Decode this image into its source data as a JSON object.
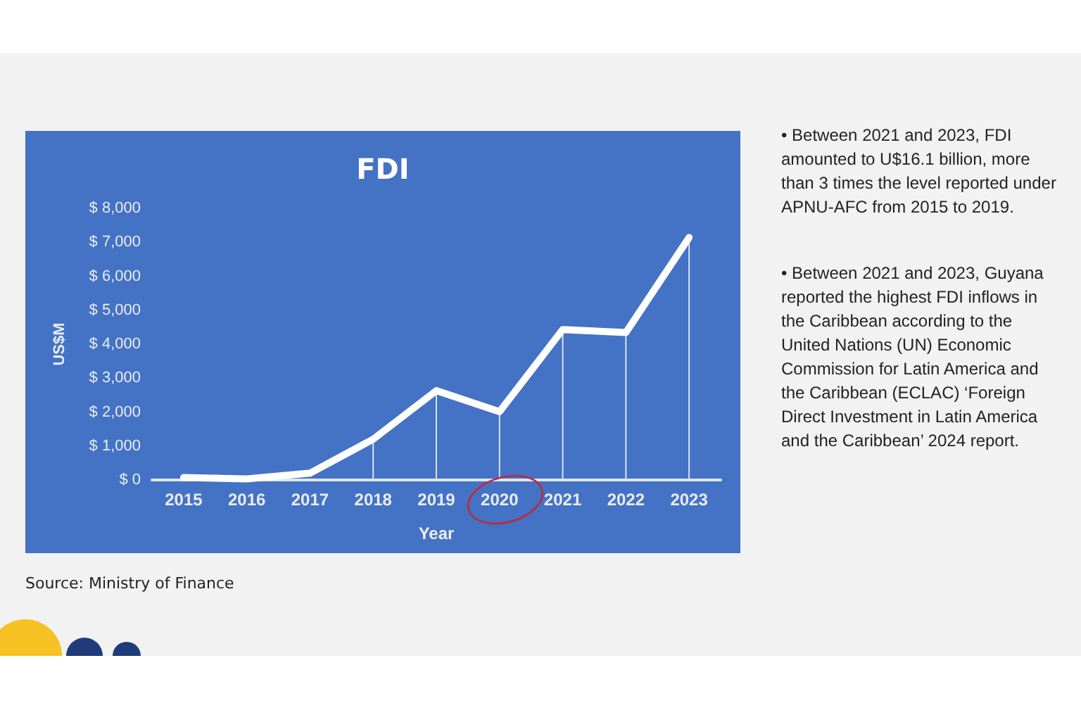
{
  "chart_data": {
    "type": "line",
    "title": "FDI",
    "xlabel": "Year",
    "ylabel": "US$M",
    "categories": [
      "2015",
      "2016",
      "2017",
      "2018",
      "2019",
      "2020",
      "2021",
      "2022",
      "2023"
    ],
    "series": [
      {
        "type": "bar",
        "color": "#d9e1f2",
        "values": [
          null,
          null,
          null,
          1200,
          2630,
          2010,
          4430,
          4340,
          7140
        ]
      },
      {
        "color": "#ffffff",
        "values": [
          70,
          30,
          200,
          1200,
          2630,
          2010,
          4430,
          4340,
          7140
        ]
      }
    ],
    "ylim": [
      0,
      8000
    ],
    "yticks": [
      {
        "value": 0,
        "label": "$ 0"
      },
      {
        "value": 1000,
        "label": "$ 1,000"
      },
      {
        "value": 2000,
        "label": "$ 2,000"
      },
      {
        "value": 3000,
        "label": "$ 3,000"
      },
      {
        "value": 4000,
        "label": "$ 4,000"
      },
      {
        "value": 5000,
        "label": "$ 5,000"
      },
      {
        "value": 6000,
        "label": "$ 6,000"
      },
      {
        "value": 7000,
        "label": "$ 7,000"
      },
      {
        "value": 8000,
        "label": "$ 8,000"
      }
    ],
    "marker": "none",
    "line_style": "solid",
    "annotations": [
      "• Between 2021 and 2023, FDI amounted to U$16.1 billion, more than 3 times the level reported under APNU-AFC from 2015 to 2019.",
      "• Between 2021 and 2023, Guyana reported the highest FDI inflows in the Caribbean according to the United Nations (UN) Economic Commission for Latin America and the Caribbean (ECLAC) ‘Foreign Direct Investment in Latin America and the Caribbean’ 2024 report.",
      "Source: Ministry of Finance"
    ]
  }
}
